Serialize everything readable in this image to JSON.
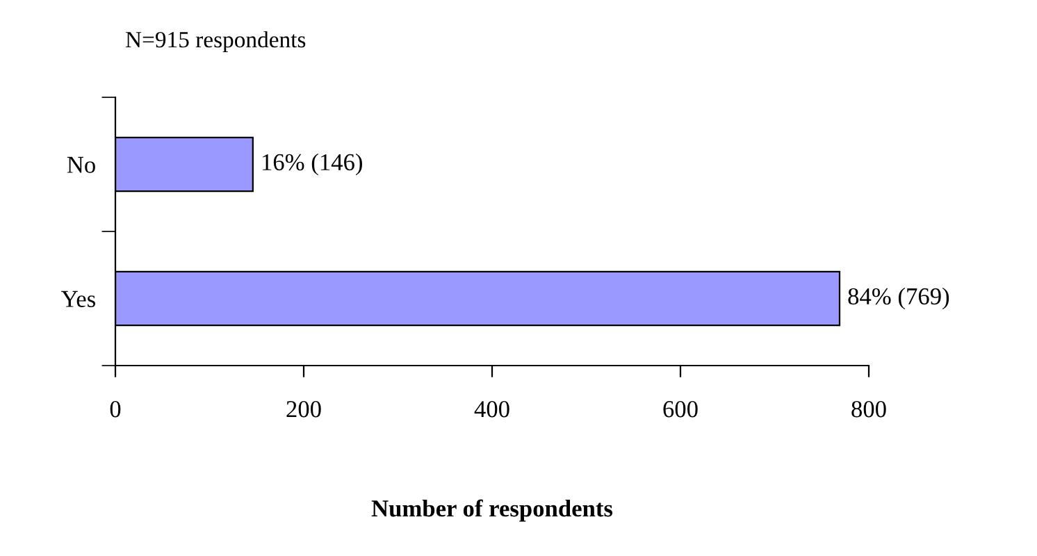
{
  "chart_data": {
    "type": "bar",
    "orientation": "horizontal",
    "title": "N=915 respondents",
    "xlabel": "Number of respondents",
    "categories": [
      "No",
      "Yes"
    ],
    "values": [
      146,
      769
    ],
    "value_labels": [
      "16% (146)",
      "84% (769)"
    ],
    "color": "#9999ff",
    "xlim": [
      0,
      800
    ],
    "xticks": [
      0,
      200,
      400,
      600,
      800
    ],
    "grid": false,
    "legend": false
  }
}
